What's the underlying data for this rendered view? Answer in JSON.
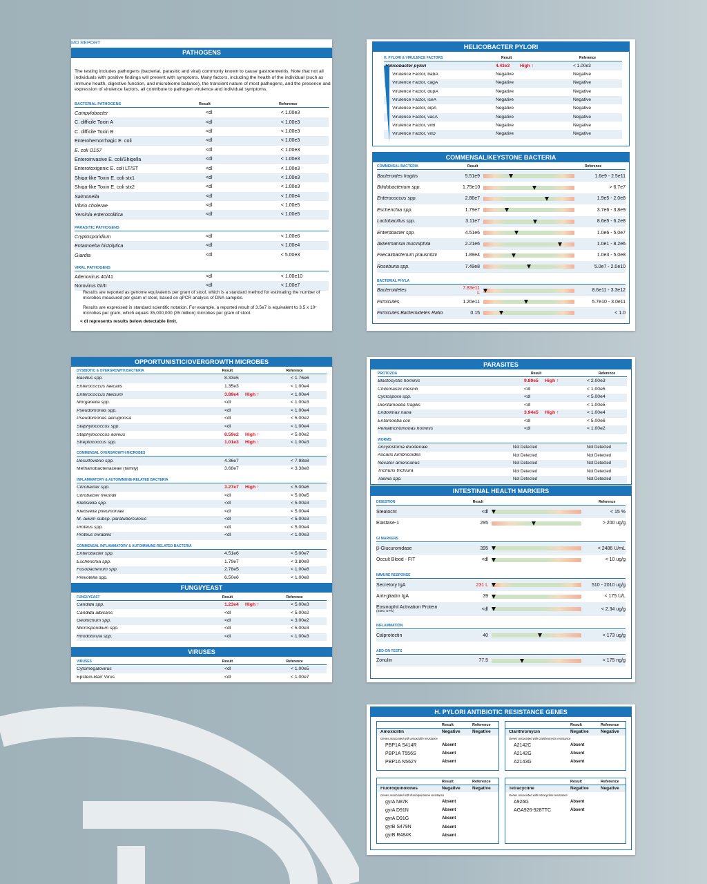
{
  "pathogens": {
    "header_fragment": "MO REPORT",
    "title": "PATHOGENS",
    "intro": "The testing includes pathogens (bacterial, parasitic and viral) commonly known to cause gastroenteritis. Note that not all individuals with positive findings will present with symptoms. Many factors, including the health of the individual (such as immune health, digestive function, and microbiome balance), the transient nature of most pathogens, and the presence and expression of virulence factors, all contribute to pathogen virulence and individual symptoms.",
    "col_result": "Result",
    "col_reference": "Reference",
    "sections": [
      {
        "heading": "BACTERIAL PATHOGENS",
        "rows": [
          {
            "name": "Campylobacter",
            "result": "<dl",
            "ref": "< 1.00e3"
          },
          {
            "name": "C. difficile Toxin A",
            "result": "<dl",
            "ref": "< 1.00e3"
          },
          {
            "name": "C. difficile Toxin B",
            "result": "<dl",
            "ref": "< 1.00e3"
          },
          {
            "name": "Enterohemorrhagic E. coli",
            "result": "<dl",
            "ref": "< 1.00e3"
          },
          {
            "name": "E. coli O157",
            "result": "<dl",
            "ref": "< 1.00e3"
          },
          {
            "name": "Enteroinvasive E. coli/Shigella",
            "result": "<dl",
            "ref": "< 1.00e3"
          },
          {
            "name": "Enterotoxigenic E. coli LT/ST",
            "result": "<dl",
            "ref": "< 1.00e3"
          },
          {
            "name": "Shiga-like Toxin E. coli stx1",
            "result": "<dl",
            "ref": "< 1.00e3"
          },
          {
            "name": "Shiga-like Toxin E. coli stx2",
            "result": "<dl",
            "ref": "< 1.00e3"
          },
          {
            "name": "Salmonella",
            "result": "<dl",
            "ref": "< 1.00e4"
          },
          {
            "name": "Vibrio cholerae",
            "result": "<dl",
            "ref": "< 1.00e5"
          },
          {
            "name": "Yersinia enterocolitica",
            "result": "<dl",
            "ref": "< 1.00e5"
          }
        ]
      },
      {
        "heading": "PARASITIC PATHOGENS",
        "rows": [
          {
            "name": "Cryptosporidium",
            "result": "<dl",
            "ref": "< 1.00e6"
          },
          {
            "name": "Entamoeba histolytica",
            "result": "<dl",
            "ref": "< 1.00e4"
          },
          {
            "name": "Giardia",
            "result": "<dl",
            "ref": "< 5.00e3"
          }
        ]
      },
      {
        "heading": "VIRAL PATHOGENS",
        "rows": [
          {
            "name": "Adenovirus 40/41",
            "result": "<dl",
            "ref": "< 1.00e10"
          },
          {
            "name": "Norovirus GI/II",
            "result": "<dl",
            "ref": "< 1.00e7"
          }
        ]
      }
    ],
    "note1": "Results are reported as genome equivalents per gram of stool, which is a standard method for estimating the number of microbes measured per gram of stool, based on qPCR analysis of DNA samples.",
    "note2": "Results are expressed in standard scientific notation. For example, a reported result of 3.5e7 is equivalent to 3.5 x 10⁷ microbes per gram, which equals 35,000,000 (35 million) microbes per gram of stool.",
    "note3": "< dl represents results below detectable limit."
  },
  "hpylori": {
    "title": "HELICOBACTER PYLORI",
    "sub": "H. PYLORI & VIRULENCE FACTORS",
    "col_result": "Result",
    "col_reference": "Reference",
    "rows": [
      {
        "name": "Helicobacter pylori",
        "result": "4.43e3",
        "flag": "High ↑",
        "ref": "< 1.00e3"
      },
      {
        "name": "Virulence Factor, babA",
        "result": "Negative",
        "flag": "",
        "ref": "Negative"
      },
      {
        "name": "Virulence Factor, cagA",
        "result": "Negative",
        "flag": "",
        "ref": "Negative"
      },
      {
        "name": "Virulence Factor, dupA",
        "result": "Negative",
        "flag": "",
        "ref": "Negative"
      },
      {
        "name": "Virulence Factor, iceA",
        "result": "Negative",
        "flag": "",
        "ref": "Negative"
      },
      {
        "name": "Virulence Factor, oipA",
        "result": "Negative",
        "flag": "",
        "ref": "Negative"
      },
      {
        "name": "Virulence Factor, vacA",
        "result": "Negative",
        "flag": "",
        "ref": "Negative"
      },
      {
        "name": "Virulence Factor, virB",
        "result": "Negative",
        "flag": "",
        "ref": "Negative"
      },
      {
        "name": "Virulence Factor, virD",
        "result": "Negative",
        "flag": "",
        "ref": "Negative"
      }
    ]
  },
  "commensal": {
    "title": "COMMENSAL/KEYSTONE BACTERIA",
    "sub1": "COMMENSAL BACTERIA",
    "col_result": "Result",
    "col_reference": "Reference",
    "rows": [
      {
        "name": "Bacteroides fragilis",
        "result": "5.51e9",
        "ref": "1.6e9 - 2.5e11",
        "pos": 0.3
      },
      {
        "name": "Bifidobacterium spp.",
        "result": "1.75e10",
        "ref": "> 6.7e7",
        "pos": 0.56
      },
      {
        "name": "Enterococcus spp.",
        "result": "2.86e7",
        "ref": "1.9e5 - 2.0e8",
        "pos": 0.7
      },
      {
        "name": "Escherichia spp.",
        "result": "1.79e7",
        "ref": "3.7e6 - 3.8e9",
        "pos": 0.26
      },
      {
        "name": "Lactobacillus spp.",
        "result": "3.11e7",
        "ref": "8.6e5 - 6.2e8",
        "pos": 0.57
      },
      {
        "name": "Enterobacter spp.",
        "result": "4.51e6",
        "ref": "1.0e6 - 5.0e7",
        "pos": 0.36
      },
      {
        "name": "Akkermansia muciniphila",
        "result": "2.21e6",
        "ref": "1.0e1 - 8.2e6",
        "pos": 0.84
      },
      {
        "name": "Faecalibacterium prausnitzii",
        "result": "1.89e4",
        "ref": "1.0e3 - 5.0e8",
        "pos": 0.33
      },
      {
        "name": "Roseburia spp.",
        "result": "7.49e8",
        "ref": "5.0e7 - 2.0e10",
        "pos": 0.5
      }
    ],
    "sub2": "BACTERIAL PHYLA",
    "phyla": [
      {
        "name": "Bacteroidetes",
        "result": "7.83e11 L",
        "ref": "8.6e11 - 3.3e12",
        "pos": 0.02,
        "low": true
      },
      {
        "name": "Firmicutes",
        "result": "1.20e11",
        "ref": "5.7e10 - 3.0e11",
        "pos": 0.47,
        "low": false
      },
      {
        "name": "Firmicutes:Bacteroidetes Ratio",
        "result": "0.15",
        "ref": "< 1.0",
        "pos": 0.2,
        "low": false
      }
    ]
  },
  "opportunistic": {
    "title": "OPPORTUNISTIC/OVERGROWTH MICROBES",
    "col_result": "Result",
    "col_reference": "Reference",
    "sections": [
      {
        "heading": "DYSBIOTIC & OVERGROWTH BACTERIA",
        "rows": [
          {
            "name": "Bacillus spp.",
            "result": "8.33e5",
            "flag": "",
            "ref": "< 1.76e6"
          },
          {
            "name": "Enterococcus faecalis",
            "result": "1.35e3",
            "flag": "",
            "ref": "< 1.00e4"
          },
          {
            "name": "Enterococcus faecium",
            "result": "3.89e4",
            "flag": "High ↑",
            "ref": "< 1.00e4"
          },
          {
            "name": "Morganella spp.",
            "result": "<dl",
            "flag": "",
            "ref": "< 1.00e3"
          },
          {
            "name": "Pseudomonas spp.",
            "result": "<dl",
            "flag": "",
            "ref": "< 1.00e4"
          },
          {
            "name": "Pseudomonas aeruginosa",
            "result": "<dl",
            "flag": "",
            "ref": "< 5.00e2"
          },
          {
            "name": "Staphylococcus spp.",
            "result": "<dl",
            "flag": "",
            "ref": "< 1.00e4"
          },
          {
            "name": "Staphylococcus aureus",
            "result": "8.59e2",
            "flag": "High ↑",
            "ref": "< 5.00e2"
          },
          {
            "name": "Streptococcus spp.",
            "result": "1.01e3",
            "flag": "High ↑",
            "ref": "< 1.00e3"
          }
        ]
      },
      {
        "heading": "COMMENSAL OVERGROWTH MICROBES",
        "rows": [
          {
            "name": "Desulfovibrio spp.",
            "result": "4.36e7",
            "flag": "",
            "ref": "< 7.98e8"
          },
          {
            "name": "Methanobacteriaceae (family)",
            "result": "3.68e7",
            "flag": "",
            "ref": "< 3.38e8"
          }
        ]
      },
      {
        "heading": "INFLAMMATORY & AUTOIMMUNE-RELATED BACTERIA",
        "rows": [
          {
            "name": "Citrobacter spp.",
            "result": "3.27e7",
            "flag": "High ↑",
            "ref": "< 5.00e6"
          },
          {
            "name": "Citrobacter freundii",
            "result": "<dl",
            "flag": "",
            "ref": "< 5.00e5"
          },
          {
            "name": "Klebsiella spp.",
            "result": "<dl",
            "flag": "",
            "ref": "< 5.00e3"
          },
          {
            "name": "Klebsiella pneumoniae",
            "result": "<dl",
            "flag": "",
            "ref": "< 5.00e4"
          },
          {
            "name": "M. avium subsp. paratuberculosis",
            "result": "<dl",
            "flag": "",
            "ref": "< 5.00e3"
          },
          {
            "name": "Proteus spp.",
            "result": "<dl",
            "flag": "",
            "ref": "< 5.00e4"
          },
          {
            "name": "Proteus mirabilis",
            "result": "<dl",
            "flag": "",
            "ref": "< 1.00e3"
          }
        ]
      },
      {
        "heading": "COMMENSAL INFLAMMATORY & AUTOIMMUNE-RELATED BACTERIA",
        "rows": [
          {
            "name": "Enterobacter spp.",
            "result": "4.51e6",
            "flag": "",
            "ref": "< 5.00e7"
          },
          {
            "name": "Escherichia spp.",
            "result": "1.79e7",
            "flag": "",
            "ref": "< 3.80e9"
          },
          {
            "name": "Fusobacterium spp.",
            "result": "2.78e5",
            "flag": "",
            "ref": "< 1.00e8"
          },
          {
            "name": "Prevotella spp.",
            "result": "6.50e6",
            "flag": "",
            "ref": "< 1.00e8"
          }
        ]
      }
    ]
  },
  "fungi": {
    "title": "FUNGI/YEAST",
    "sub": "FUNGI/YEAST",
    "col_result": "Result",
    "col_reference": "Reference",
    "rows": [
      {
        "name": "Candida spp.",
        "result": "1.23e4",
        "flag": "High ↑",
        "ref": "< 5.00e3"
      },
      {
        "name": "Candida albicans",
        "result": "<dl",
        "flag": "",
        "ref": "< 5.00e2"
      },
      {
        "name": "Geotrichum spp.",
        "result": "<dl",
        "flag": "",
        "ref": "< 3.00e2"
      },
      {
        "name": "Microsporidium spp.",
        "result": "<dl",
        "flag": "",
        "ref": "< 5.00e3"
      },
      {
        "name": "Rhodotorula spp.",
        "result": "<dl",
        "flag": "",
        "ref": "< 1.00e3"
      }
    ]
  },
  "viruses": {
    "title": "VIRUSES",
    "sub": "VIRUSES",
    "col_result": "Result",
    "col_reference": "Reference",
    "rows": [
      {
        "name": "Cytomegalovirus",
        "result": "<dl",
        "ref": "< 1.00e5"
      },
      {
        "name": "Epstein-Barr Virus",
        "result": "<dl",
        "ref": "< 1.00e7"
      }
    ]
  },
  "parasites": {
    "title": "PARASITES",
    "col_result": "Result",
    "col_reference": "Reference",
    "sections": [
      {
        "heading": "PROTOZOA",
        "rows": [
          {
            "name": "Blastocystis hominis",
            "result": "9.80e5",
            "flag": "High ↑",
            "ref": "< 2.00e3"
          },
          {
            "name": "Chilomastix mesnili",
            "result": "<dl",
            "flag": "",
            "ref": "< 1.00e5"
          },
          {
            "name": "Cyclospora spp.",
            "result": "<dl",
            "flag": "",
            "ref": "< 5.00e4"
          },
          {
            "name": "Dientamoeba fragilis",
            "result": "<dl",
            "flag": "",
            "ref": "< 1.00e5"
          },
          {
            "name": "Endolimax nana",
            "result": "3.94e5",
            "flag": "High ↑",
            "ref": "< 1.00e4"
          },
          {
            "name": "Entamoeba coli",
            "result": "<dl",
            "flag": "",
            "ref": "< 5.00e6"
          },
          {
            "name": "Pentatrichomonas hominis",
            "result": "<dl",
            "flag": "",
            "ref": "< 1.00e2"
          }
        ]
      },
      {
        "heading": "WORMS",
        "rows": [
          {
            "name": "Ancylostoma duodenale",
            "result": "Not Detected",
            "flag": "",
            "ref": "Not Detected"
          },
          {
            "name": "Ascaris lumbricoides",
            "result": "Not Detected",
            "flag": "",
            "ref": "Not Detected"
          },
          {
            "name": "Necator americanus",
            "result": "Not Detected",
            "flag": "",
            "ref": "Not Detected"
          },
          {
            "name": "Trichuris trichiura",
            "result": "Not Detected",
            "flag": "",
            "ref": "Not Detected"
          },
          {
            "name": "Taenia spp.",
            "result": "Not Detected",
            "flag": "",
            "ref": "Not Detected"
          }
        ]
      }
    ]
  },
  "intestinal": {
    "title": "INTESTINAL HEALTH MARKERS",
    "col_result": "Result",
    "col_reference": "Reference",
    "sections": [
      {
        "heading": "DIGESTION",
        "rows": [
          {
            "name": "Steatocrit",
            "result": "<dl",
            "ref": "< 15 %",
            "pos": 0.02,
            "low": false,
            "scale": "lowgood",
            "note": ""
          },
          {
            "name": "Elastase-1",
            "result": "295",
            "ref": "> 200 ug/g",
            "pos": 0.47,
            "low": false,
            "scale": "highgood",
            "note": ""
          }
        ]
      },
      {
        "heading": "GI MARKERS",
        "rows": [
          {
            "name": "β-Glucuronidase",
            "result": "395",
            "ref": "< 2486 U/mL",
            "pos": 0.02,
            "low": false,
            "scale": "lowgood",
            "note": ""
          },
          {
            "name": "Occult Blood - FIT",
            "result": "<dl",
            "ref": "< 10 ug/g",
            "pos": 0.02,
            "low": false,
            "scale": "lowgood",
            "note": ""
          }
        ]
      },
      {
        "heading": "IMMUNE RESPONSE",
        "rows": [
          {
            "name": "Secretory IgA",
            "result": "231 L",
            "ref": "510 - 2010 ug/g",
            "pos": 0.02,
            "low": true,
            "scale": "normal",
            "note": ""
          },
          {
            "name": "Anti-gliadin IgA",
            "result": "39",
            "ref": "< 175 U/L",
            "pos": 0.02,
            "low": false,
            "scale": "lowgood",
            "note": ""
          },
          {
            "name": "Eosinophil Activation Protein",
            "result": "<dl",
            "ref": "< 2.34 ug/g",
            "pos": 0.02,
            "low": false,
            "scale": "lowgood",
            "note": "(EDN, EPX)"
          }
        ]
      },
      {
        "heading": "INFLAMMATION",
        "rows": [
          {
            "name": "Calprotectin",
            "result": "40",
            "ref": "< 173 ug/g",
            "pos": 0.54,
            "low": false,
            "scale": "lowgood",
            "note": ""
          }
        ]
      },
      {
        "heading": "ADD-ON TESTS",
        "rows": [
          {
            "name": "Zonulin",
            "result": "77.5",
            "ref": "< 175 ng/g",
            "pos": 0.34,
            "low": false,
            "scale": "lowgood",
            "note": ""
          }
        ]
      }
    ]
  },
  "resistance": {
    "title": "H. PYLORI ANTIBIOTIC RESISTANCE GENES",
    "col_result": "Result",
    "col_reference": "Reference",
    "boxes": [
      {
        "antibiotic": "Amoxicillin",
        "result": "Negative",
        "ref": "Negative",
        "desc": "Genes associated with amoxicillin resistance",
        "genes": [
          {
            "g": "PBP1A S414R",
            "r": "Absent"
          },
          {
            "g": "PBP1A T556S",
            "r": "Absent"
          },
          {
            "g": "PBP1A N562Y",
            "r": "Absent"
          }
        ]
      },
      {
        "antibiotic": "Clarithromycin",
        "result": "Negative",
        "ref": "Negative",
        "desc": "Genes associated with clarithromycin resistance",
        "genes": [
          {
            "g": "A2142C",
            "r": "Absent"
          },
          {
            "g": "A2142G",
            "r": "Absent"
          },
          {
            "g": "A2143G",
            "r": "Absent"
          }
        ]
      },
      {
        "antibiotic": "Fluoroquinolones",
        "result": "Negative",
        "ref": "Negative",
        "desc": "Genes associated with fluoroquinolone resistance",
        "genes": [
          {
            "g": "gyrA N87K",
            "r": "Absent"
          },
          {
            "g": "gyrA D91N",
            "r": "Absent"
          },
          {
            "g": "gyrA D91G",
            "r": "Absent"
          },
          {
            "g": "gyrB S479N",
            "r": "Absent"
          },
          {
            "g": "gyrB R484K",
            "r": "Absent"
          }
        ]
      },
      {
        "antibiotic": "Tetracycline",
        "result": "Negative",
        "ref": "Negative",
        "desc": "Genes associated with tetracycline resistance",
        "genes": [
          {
            "g": "A926G",
            "r": "Absent"
          },
          {
            "g": "AGA926-928TTC",
            "r": "Absent"
          }
        ]
      }
    ]
  }
}
